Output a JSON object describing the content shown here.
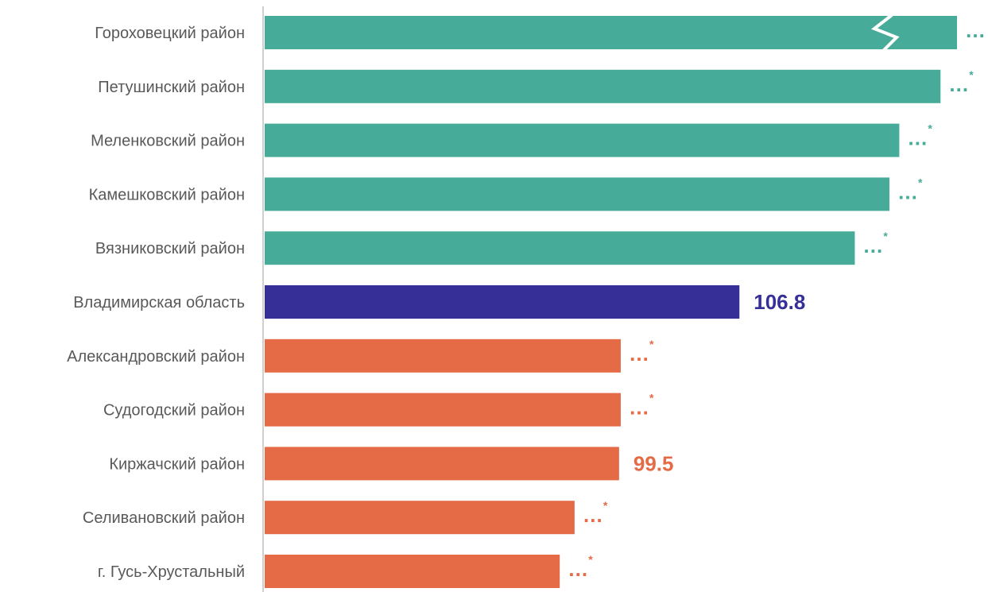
{
  "chart_data": {
    "type": "bar",
    "orientation": "horizontal",
    "categories": [
      "Гороховецкий район",
      "Петушинский район",
      "Меленковский район",
      "Камешковский район",
      "Вязниковский район",
      "Владимирская область",
      "Александровский район",
      "Судогодский район",
      "Киржачский район",
      "Селивановский район",
      "г. Гусь-Хрустальный"
    ],
    "values": [
      120.0,
      119.0,
      116.5,
      115.9,
      113.8,
      106.8,
      99.6,
      99.6,
      99.5,
      96.8,
      95.9
    ],
    "labels": [
      {
        "text": "…",
        "star": ""
      },
      {
        "text": "…",
        "star": "*"
      },
      {
        "text": "…",
        "star": "*"
      },
      {
        "text": "…",
        "star": "*"
      },
      {
        "text": "…",
        "star": "*"
      },
      {
        "text": "106.8",
        "star": ""
      },
      {
        "text": "…",
        "star": "*"
      },
      {
        "text": "…",
        "star": "*"
      },
      {
        "text": "99.5",
        "star": ""
      },
      {
        "text": "…",
        "star": "*"
      },
      {
        "text": "…",
        "star": "*"
      }
    ],
    "truncated": [
      true,
      false,
      false,
      false,
      false,
      false,
      false,
      false,
      false,
      false,
      false
    ],
    "groups": [
      "above",
      "above",
      "above",
      "above",
      "above",
      "region",
      "below",
      "below",
      "below",
      "below",
      "below"
    ],
    "colors": {
      "above": "#46ab98",
      "region": "#352f97",
      "below": "#e56a46"
    },
    "xlim": [
      78,
      120
    ],
    "title": "",
    "xlabel": "",
    "ylabel": "",
    "grid": false,
    "legend": "none"
  }
}
